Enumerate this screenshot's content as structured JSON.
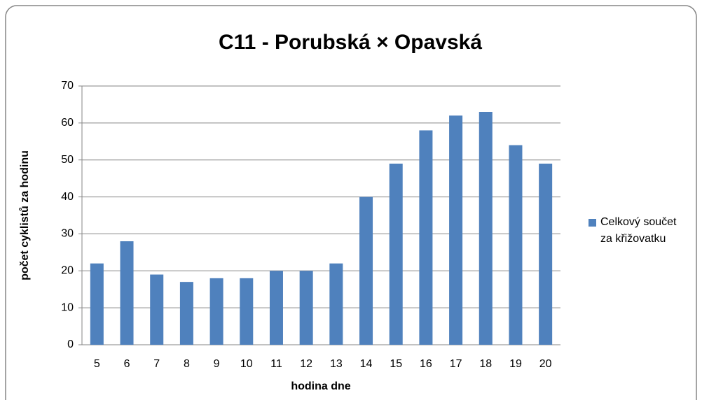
{
  "chart_data": {
    "type": "bar",
    "title": "C11 - Porubská × Opavská",
    "x_label": "hodina dne",
    "y_label": "počet cyklistů za hodinu",
    "categories": [
      "5",
      "6",
      "7",
      "8",
      "9",
      "10",
      "11",
      "12",
      "13",
      "14",
      "15",
      "16",
      "17",
      "18",
      "19",
      "20"
    ],
    "series": [
      {
        "name": "Celkový součet za křižovatku",
        "color": "#4f81bd",
        "values": [
          22,
          28,
          19,
          17,
          18,
          18,
          20,
          20,
          22,
          40,
          49,
          58,
          62,
          63,
          54,
          49
        ]
      }
    ],
    "ylim": [
      0,
      70
    ],
    "yticks": [
      0,
      10,
      20,
      30,
      40,
      50,
      60,
      70
    ],
    "grid": true,
    "legend": "right"
  }
}
